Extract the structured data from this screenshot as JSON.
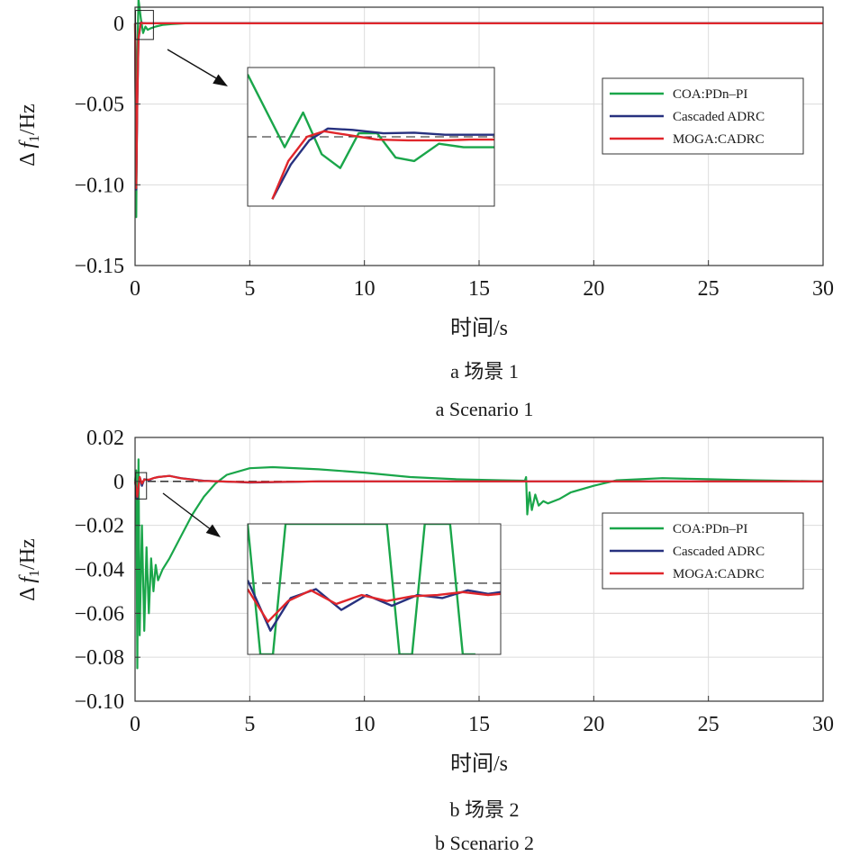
{
  "colors": {
    "green": "#1aa64a",
    "navy": "#27317f",
    "red": "#e0262b",
    "ref": "#1a1a1a"
  },
  "legend": [
    "COA:PDn–PI",
    "Cascaded ADRC",
    "MOGA:CADRC"
  ],
  "chart_data": [
    {
      "type": "line",
      "caption_cn": "a 场景 1",
      "caption_en": "a Scenario 1",
      "xlabel": "时间/s",
      "ylabel": "Δ f1/Hz",
      "xlim": [
        0,
        30
      ],
      "ylim": [
        -0.15,
        0.01
      ],
      "xticks": [
        0,
        5,
        10,
        15,
        20,
        25,
        30
      ],
      "yticks": [
        0,
        -0.05,
        -0.1,
        -0.15
      ],
      "ytick_labels": [
        "0",
        "−0.05",
        "−0.10",
        "−0.15"
      ],
      "grid": true,
      "legend_position": "inset-right",
      "series": [
        {
          "name": "COA:PDn–PI",
          "color": "green",
          "x": [
            0,
            0.05,
            0.1,
            0.15,
            0.25,
            0.35,
            0.45,
            0.55,
            0.7,
            0.9,
            1.2,
            1.6,
            2.2,
            3,
            30
          ],
          "y": [
            0,
            -0.12,
            -0.02,
            0.015,
            0.003,
            -0.006,
            -0.002,
            -0.004,
            -0.003,
            -0.002,
            -0.001,
            -0.0005,
            0,
            0,
            0
          ]
        },
        {
          "name": "Cascaded ADRC",
          "color": "navy",
          "x": [
            0,
            0.05,
            0.1,
            0.15,
            0.25,
            0.35,
            0.5,
            1,
            30
          ],
          "y": [
            0,
            -0.103,
            -0.05,
            -0.01,
            0.0005,
            0.0002,
            0.0001,
            0,
            0
          ]
        },
        {
          "name": "MOGA:CADRC",
          "color": "red",
          "x": [
            0,
            0.05,
            0.1,
            0.15,
            0.25,
            0.35,
            0.5,
            1,
            30
          ],
          "y": [
            0,
            -0.102,
            -0.048,
            -0.009,
            0.0004,
            0.0001,
            0,
            0,
            0
          ]
        }
      ],
      "inset": {
        "series": [
          {
            "name": "COA:PDn–PI",
            "color": "green",
            "x": [
              0,
              0.3,
              0.45,
              0.6,
              0.75,
              0.9,
              1.05,
              1.2,
              1.35,
              1.55,
              1.75,
              2.0
            ],
            "y": [
              0.9,
              -0.15,
              0.35,
              -0.25,
              -0.45,
              0.05,
              0.05,
              -0.3,
              -0.35,
              -0.1,
              -0.15,
              -0.15
            ]
          },
          {
            "name": "Cascaded ADRC",
            "color": "navy",
            "x": [
              0.2,
              0.35,
              0.5,
              0.65,
              0.85,
              1.1,
              1.35,
              1.6,
              1.8,
              2.0
            ],
            "y": [
              -0.9,
              -0.4,
              -0.05,
              0.12,
              0.1,
              0.05,
              0.06,
              0.03,
              0.03,
              0.03
            ]
          },
          {
            "name": "MOGA:CADRC",
            "color": "red",
            "x": [
              0.2,
              0.33,
              0.48,
              0.62,
              0.8,
              1.05,
              1.3,
              1.6,
              1.8,
              2.0
            ],
            "y": [
              -0.9,
              -0.35,
              0.0,
              0.08,
              0.03,
              -0.04,
              -0.05,
              -0.05,
              -0.04,
              -0.04
            ]
          }
        ]
      }
    },
    {
      "type": "line",
      "caption_cn": "b 场景 2",
      "caption_en": "b Scenario 2",
      "xlabel": "时间/s",
      "ylabel": "Δ f1/Hz",
      "xlim": [
        0,
        30
      ],
      "ylim": [
        -0.1,
        0.02
      ],
      "xticks": [
        0,
        5,
        10,
        15,
        20,
        25,
        30
      ],
      "yticks": [
        0.02,
        0,
        -0.02,
        -0.04,
        -0.06,
        -0.08,
        -0.1
      ],
      "ytick_labels": [
        "0.02",
        "0",
        "−0.02",
        "−0.04",
        "−0.06",
        "−0.08",
        "−0.10"
      ],
      "grid": true,
      "legend_position": "inset-right",
      "series": [
        {
          "name": "COA:PDn–PI",
          "color": "green",
          "x": [
            0,
            0.05,
            0.1,
            0.15,
            0.2,
            0.3,
            0.4,
            0.5,
            0.6,
            0.7,
            0.8,
            0.9,
            1.0,
            1.2,
            1.5,
            2,
            2.5,
            3,
            3.5,
            4,
            5,
            6,
            8,
            10,
            12,
            14,
            16,
            17,
            17.05,
            17.1,
            17.2,
            17.3,
            17.45,
            17.6,
            17.8,
            18,
            18.5,
            19,
            20,
            21,
            23,
            25,
            27,
            30
          ],
          "y": [
            0,
            0.005,
            -0.085,
            0.01,
            -0.07,
            -0.02,
            -0.068,
            -0.03,
            -0.06,
            -0.035,
            -0.05,
            -0.038,
            -0.045,
            -0.04,
            -0.035,
            -0.025,
            -0.015,
            -0.007,
            -0.001,
            0.003,
            0.006,
            0.0065,
            0.0055,
            0.004,
            0.002,
            0.001,
            0.0005,
            0.0003,
            0.002,
            -0.015,
            -0.005,
            -0.013,
            -0.006,
            -0.011,
            -0.009,
            -0.01,
            -0.008,
            -0.005,
            -0.002,
            0.0005,
            0.0015,
            0.001,
            0.0005,
            0
          ]
        },
        {
          "name": "Cascaded ADRC",
          "color": "navy",
          "x": [
            0,
            0.1,
            0.2,
            0.3,
            0.4,
            0.6,
            0.8,
            1,
            1.5,
            2,
            3,
            5,
            8,
            10,
            30
          ],
          "y": [
            0,
            -0.008,
            0.002,
            -0.002,
            0.001,
            0.0005,
            0.0015,
            0.002,
            0.0025,
            0.0015,
            0.0003,
            -0.0005,
            0,
            0,
            0
          ]
        },
        {
          "name": "MOGA:CADRC",
          "color": "red",
          "x": [
            0,
            0.1,
            0.2,
            0.3,
            0.4,
            0.6,
            0.8,
            1,
            1.5,
            2,
            3,
            5,
            8,
            10,
            30
          ],
          "y": [
            0,
            -0.007,
            0.002,
            -0.001,
            0.0008,
            0.0008,
            0.0015,
            0.002,
            0.0025,
            0.0014,
            0.0002,
            -0.0004,
            0,
            0,
            0
          ]
        }
      ],
      "inset": {
        "series": [
          {
            "name": "COA:PDn–PI",
            "color": "green",
            "x": [
              0.0,
              0.05,
              0.1,
              0.15,
              0.55,
              0.6,
              0.65,
              0.7,
              0.8,
              0.85,
              0.9
            ],
            "y": [
              1.0,
              -1.2,
              -1.2,
              1.0,
              1.0,
              -1.2,
              -1.2,
              1.0,
              1.0,
              -1.2,
              -1.2
            ]
          },
          {
            "name": "Cascaded ADRC",
            "color": "navy",
            "x": [
              0.0,
              0.09,
              0.17,
              0.27,
              0.37,
              0.47,
              0.57,
              0.67,
              0.77,
              0.87,
              0.95,
              1.0
            ],
            "y": [
              0.05,
              -0.8,
              -0.25,
              -0.1,
              -0.45,
              -0.2,
              -0.38,
              -0.2,
              -0.25,
              -0.12,
              -0.18,
              -0.15
            ]
          },
          {
            "name": "MOGA:CADRC",
            "color": "red",
            "x": [
              0.0,
              0.08,
              0.16,
              0.25,
              0.35,
              0.45,
              0.55,
              0.65,
              0.75,
              0.85,
              0.95,
              1.0
            ],
            "y": [
              -0.1,
              -0.65,
              -0.3,
              -0.12,
              -0.35,
              -0.2,
              -0.3,
              -0.22,
              -0.2,
              -0.15,
              -0.2,
              -0.18
            ]
          }
        ]
      }
    }
  ]
}
